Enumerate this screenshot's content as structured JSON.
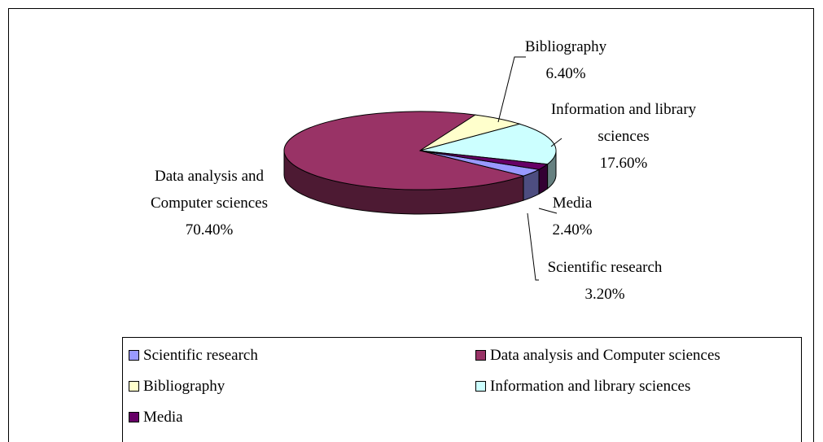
{
  "chart_data": {
    "type": "pie3d",
    "categories": [
      "Scientific research",
      "Data analysis and Computer sciences",
      "Bibliography",
      "Information and library sciences",
      "Media"
    ],
    "values": [
      3.2,
      70.4,
      6.4,
      17.6,
      2.4
    ],
    "value_labels": [
      "3.20%",
      "70.40%",
      "6.40%",
      "17.60%",
      "2.40%"
    ],
    "colors": [
      "#9999ff",
      "#993366",
      "#ffffcc",
      "#ccffff",
      "#660066"
    ],
    "legend": "bottom"
  }
}
